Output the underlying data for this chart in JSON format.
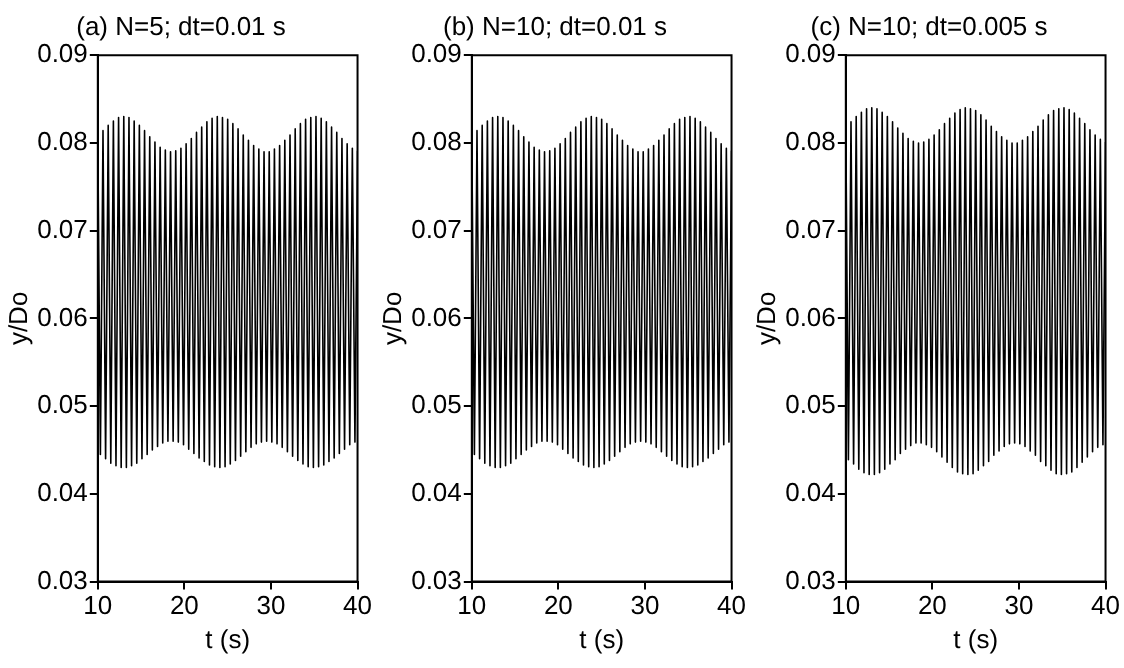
{
  "chart_data": [
    {
      "type": "line",
      "title": "(a) N=5; dt=0.01 s",
      "xlabel": "t (s)",
      "ylabel": "y/Do",
      "marker": "none",
      "xlim": [
        10,
        40
      ],
      "xticks": [
        10,
        20,
        30,
        40
      ],
      "ylim": [
        0.03,
        0.09
      ],
      "yticks": [
        0.03,
        0.04,
        0.05,
        0.06,
        0.07,
        0.08,
        0.09
      ],
      "x": [
        10,
        10.3,
        10.6,
        10.9,
        11.2,
        11.5,
        11.8,
        12.1,
        12.4,
        12.7,
        13,
        13.3,
        13.6,
        13.9,
        14.2,
        14.5,
        14.8,
        15.1,
        15.4,
        15.7,
        16,
        16.3,
        16.6,
        16.9,
        17.2,
        17.5,
        17.8,
        18.1,
        18.4,
        18.7,
        19,
        19.3,
        19.6,
        19.9,
        20.2,
        20.5,
        20.8,
        21.1,
        21.4,
        21.7,
        22,
        22.3,
        22.6,
        22.9,
        23.2,
        23.5,
        23.8,
        24.1,
        24.4,
        24.7,
        25,
        25.3,
        25.6,
        25.9,
        26.2,
        26.5,
        26.8,
        27.1,
        27.4,
        27.7,
        28,
        28.3,
        28.6,
        28.9,
        29.2,
        29.5,
        29.8,
        30.1,
        30.4,
        30.7,
        31,
        31.3,
        31.6,
        31.9,
        32.2,
        32.5,
        32.8,
        33.1,
        33.4,
        33.7,
        34,
        34.3,
        34.6,
        34.9,
        35.2,
        35.5,
        35.8,
        36.1,
        36.4,
        36.7,
        37,
        37.3,
        37.6,
        37.9,
        38.2,
        38.5,
        38.8,
        39.1,
        39.4,
        39.7,
        40
      ],
      "series": [
        {
          "color": "#000000",
          "values": [
            0.0807,
            0.0445,
            0.0814,
            0.044,
            0.082,
            0.0435,
            0.0825,
            0.0432,
            0.0829,
            0.043,
            0.083,
            0.043,
            0.0829,
            0.0432,
            0.0825,
            0.0435,
            0.082,
            0.044,
            0.0814,
            0.0445,
            0.0807,
            0.045,
            0.0801,
            0.0454,
            0.0795,
            0.0458,
            0.0792,
            0.046,
            0.079,
            0.046,
            0.0791,
            0.0459,
            0.0794,
            0.0456,
            0.0799,
            0.0451,
            0.0805,
            0.0446,
            0.0812,
            0.0441,
            0.0818,
            0.0437,
            0.0824,
            0.0433,
            0.0828,
            0.0431,
            0.083,
            0.043,
            0.0829,
            0.0431,
            0.0827,
            0.0434,
            0.0822,
            0.0438,
            0.0816,
            0.0443,
            0.0809,
            0.0448,
            0.0803,
            0.0453,
            0.0797,
            0.0457,
            0.0793,
            0.0459,
            0.079,
            0.046,
            0.079,
            0.0459,
            0.0793,
            0.0457,
            0.0797,
            0.0453,
            0.0803,
            0.0448,
            0.0809,
            0.0443,
            0.0816,
            0.0438,
            0.0822,
            0.0434,
            0.0827,
            0.0431,
            0.0829,
            0.043,
            0.083,
            0.0431,
            0.0828,
            0.0433,
            0.0824,
            0.0437,
            0.0818,
            0.0441,
            0.0812,
            0.0446,
            0.0805,
            0.0451,
            0.0799,
            0.0456,
            0.0794,
            0.0459,
            0.0791
          ]
        }
      ]
    },
    {
      "type": "line",
      "title": "(b) N=10; dt=0.01 s",
      "xlabel": "t (s)",
      "ylabel": "y/Do",
      "marker": "none",
      "xlim": [
        10,
        40
      ],
      "xticks": [
        10,
        20,
        30,
        40
      ],
      "ylim": [
        0.03,
        0.09
      ],
      "yticks": [
        0.03,
        0.04,
        0.05,
        0.06,
        0.07,
        0.08,
        0.09
      ],
      "x": [
        10,
        10.3,
        10.6,
        10.9,
        11.2,
        11.5,
        11.8,
        12.1,
        12.4,
        12.7,
        13,
        13.3,
        13.6,
        13.9,
        14.2,
        14.5,
        14.8,
        15.1,
        15.4,
        15.7,
        16,
        16.3,
        16.6,
        16.9,
        17.2,
        17.5,
        17.8,
        18.1,
        18.4,
        18.7,
        19,
        19.3,
        19.6,
        19.9,
        20.2,
        20.5,
        20.8,
        21.1,
        21.4,
        21.7,
        22,
        22.3,
        22.6,
        22.9,
        23.2,
        23.5,
        23.8,
        24.1,
        24.4,
        24.7,
        25,
        25.3,
        25.6,
        25.9,
        26.2,
        26.5,
        26.8,
        27.1,
        27.4,
        27.7,
        28,
        28.3,
        28.6,
        28.9,
        29.2,
        29.5,
        29.8,
        30.1,
        30.4,
        30.7,
        31,
        31.3,
        31.6,
        31.9,
        32.2,
        32.5,
        32.8,
        33.1,
        33.4,
        33.7,
        34,
        34.3,
        34.6,
        34.9,
        35.2,
        35.5,
        35.8,
        36.1,
        36.4,
        36.7,
        37,
        37.3,
        37.6,
        37.9,
        38.2,
        38.5,
        38.8,
        39.1,
        39.4,
        39.7,
        40
      ],
      "series": [
        {
          "color": "#000000",
          "values": [
            0.0807,
            0.0445,
            0.0814,
            0.044,
            0.082,
            0.0435,
            0.0825,
            0.0432,
            0.0829,
            0.043,
            0.083,
            0.043,
            0.0829,
            0.0432,
            0.0825,
            0.0435,
            0.082,
            0.044,
            0.0814,
            0.0445,
            0.0807,
            0.045,
            0.0801,
            0.0454,
            0.0795,
            0.0458,
            0.0792,
            0.046,
            0.079,
            0.046,
            0.0791,
            0.0459,
            0.0794,
            0.0456,
            0.0799,
            0.0451,
            0.0805,
            0.0446,
            0.0812,
            0.0441,
            0.0818,
            0.0437,
            0.0824,
            0.0433,
            0.0828,
            0.0431,
            0.083,
            0.043,
            0.0829,
            0.0431,
            0.0827,
            0.0434,
            0.0822,
            0.0438,
            0.0816,
            0.0443,
            0.0809,
            0.0448,
            0.0803,
            0.0453,
            0.0797,
            0.0457,
            0.0793,
            0.0459,
            0.079,
            0.046,
            0.079,
            0.0459,
            0.0793,
            0.0457,
            0.0797,
            0.0453,
            0.0803,
            0.0448,
            0.0809,
            0.0443,
            0.0816,
            0.0438,
            0.0822,
            0.0434,
            0.0827,
            0.0431,
            0.0829,
            0.043,
            0.083,
            0.0431,
            0.0828,
            0.0433,
            0.0824,
            0.0437,
            0.0818,
            0.0441,
            0.0812,
            0.0446,
            0.0805,
            0.0451,
            0.0799,
            0.0456,
            0.0794,
            0.0459,
            0.0791
          ]
        }
      ]
    },
    {
      "type": "line",
      "title": "(c) N=10; dt=0.005 s",
      "xlabel": "t (s)",
      "ylabel": "y/Do",
      "marker": "none",
      "xlim": [
        10,
        40
      ],
      "xticks": [
        10,
        20,
        30,
        40
      ],
      "ylim": [
        0.03,
        0.09
      ],
      "yticks": [
        0.03,
        0.04,
        0.05,
        0.06,
        0.07,
        0.08,
        0.09
      ],
      "x": [
        10,
        10.3,
        10.6,
        10.9,
        11.2,
        11.5,
        11.8,
        12.1,
        12.4,
        12.7,
        13,
        13.3,
        13.6,
        13.9,
        14.2,
        14.5,
        14.8,
        15.1,
        15.4,
        15.7,
        16,
        16.3,
        16.6,
        16.9,
        17.2,
        17.5,
        17.8,
        18.1,
        18.4,
        18.7,
        19,
        19.3,
        19.6,
        19.9,
        20.2,
        20.5,
        20.8,
        21.1,
        21.4,
        21.7,
        22,
        22.3,
        22.6,
        22.9,
        23.2,
        23.5,
        23.8,
        24.1,
        24.4,
        24.7,
        25,
        25.3,
        25.6,
        25.9,
        26.2,
        26.5,
        26.8,
        27.1,
        27.4,
        27.7,
        28,
        28.3,
        28.6,
        28.9,
        29.2,
        29.5,
        29.8,
        30.1,
        30.4,
        30.7,
        31,
        31.3,
        31.6,
        31.9,
        32.2,
        32.5,
        32.8,
        33.1,
        33.4,
        33.7,
        34,
        34.3,
        34.6,
        34.9,
        35.2,
        35.5,
        35.8,
        36.1,
        36.4,
        36.7,
        37,
        37.3,
        37.6,
        37.9,
        38.2,
        38.5,
        38.8,
        39.1,
        39.4,
        39.7,
        40
      ],
      "series": [
        {
          "color": "#000000",
          "values": [
            0.0817,
            0.0439,
            0.0824,
            0.0434,
            0.083,
            0.0428,
            0.0835,
            0.0424,
            0.0839,
            0.0422,
            0.084,
            0.0422,
            0.0839,
            0.0424,
            0.0835,
            0.0428,
            0.083,
            0.0434,
            0.0824,
            0.0439,
            0.0817,
            0.0446,
            0.0811,
            0.0451,
            0.0805,
            0.0455,
            0.0802,
            0.0458,
            0.08,
            0.0458,
            0.0801,
            0.0456,
            0.0804,
            0.0453,
            0.0809,
            0.0448,
            0.0815,
            0.0442,
            0.0822,
            0.0436,
            0.0828,
            0.043,
            0.0834,
            0.0425,
            0.0838,
            0.0423,
            0.084,
            0.0422,
            0.0839,
            0.0423,
            0.0837,
            0.0427,
            0.0832,
            0.0432,
            0.0826,
            0.0437,
            0.0819,
            0.0444,
            0.0813,
            0.0449,
            0.0807,
            0.0454,
            0.0803,
            0.0457,
            0.08,
            0.0458,
            0.08,
            0.0457,
            0.0803,
            0.0454,
            0.0807,
            0.0449,
            0.0813,
            0.0444,
            0.0819,
            0.0437,
            0.0826,
            0.0432,
            0.0832,
            0.0427,
            0.0837,
            0.0423,
            0.0839,
            0.0422,
            0.084,
            0.0423,
            0.0838,
            0.0425,
            0.0834,
            0.043,
            0.0828,
            0.0436,
            0.0822,
            0.0442,
            0.0815,
            0.0448,
            0.0809,
            0.0453,
            0.0804,
            0.0456,
            0.0801
          ]
        }
      ]
    }
  ]
}
